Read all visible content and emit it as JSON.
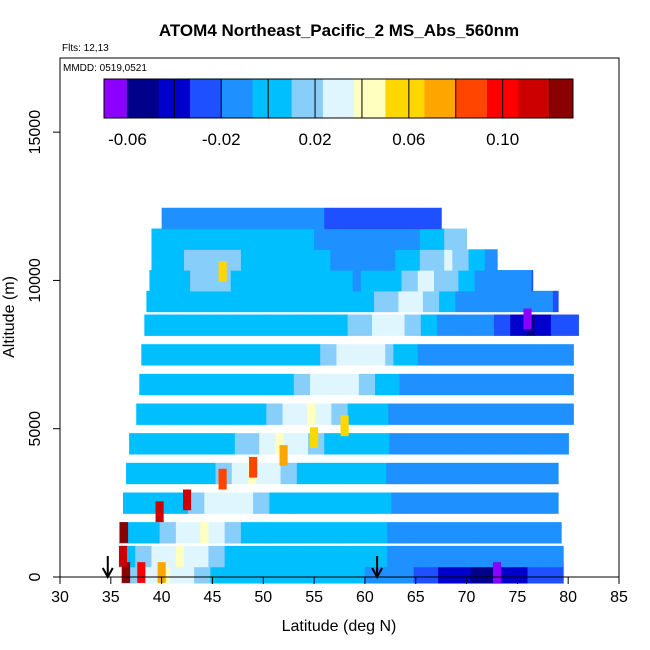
{
  "chart_data": {
    "type": "heatmap",
    "title": "ATOM4 Northeast_Pacific_2 MS_Abs_560nm",
    "flights_label": "Flts: 12,13",
    "mmdd_label": "MMDD: 0519,0521",
    "xlabel": "Latitude (deg N)",
    "ylabel": "Altitude (m)",
    "xlim": [
      30,
      85
    ],
    "ylim": [
      0,
      17500
    ],
    "x_ticks": [
      30,
      35,
      40,
      45,
      50,
      55,
      60,
      65,
      70,
      75,
      80,
      85
    ],
    "x_tick_labels": [
      "30",
      "35",
      "40",
      "45",
      "50",
      "55",
      "60",
      "65",
      "70",
      "75",
      "80",
      "85"
    ],
    "y_ticks": [
      0,
      5000,
      10000,
      15000
    ],
    "y_tick_labels": [
      "0",
      "5000",
      "10000",
      "15000"
    ],
    "colorbar": {
      "range": [
        -0.07,
        0.13
      ],
      "ticks": [
        -0.06,
        -0.02,
        0.02,
        0.06,
        0.1
      ],
      "tick_labels": [
        "-0.06",
        "-0.02",
        "0.02",
        "0.06",
        "0.10"
      ],
      "colors": [
        "#8b00ff",
        "#00008b",
        "#0000cd",
        "#1e50ff",
        "#1e90ff",
        "#00bfff",
        "#87cefa",
        "#e0f6ff",
        "#ffffc0",
        "#ffd700",
        "#ffa500",
        "#ff4500",
        "#ff0000",
        "#cd0000",
        "#8b0000"
      ],
      "divisions": [
        -0.06,
        -0.04,
        -0.02,
        0.0,
        0.02,
        0.04,
        0.06,
        0.08,
        0.1,
        0.12
      ]
    },
    "markers": [
      {
        "label": "arrow",
        "lat": 34.7
      },
      {
        "label": "arrow",
        "lat": 61.2
      }
    ],
    "profile_extent": [
      {
        "alt": 150,
        "lat_min": 36.0,
        "lat_max": 79.5
      },
      {
        "alt": 700,
        "lat_min": 35.8,
        "lat_max": 79.5
      },
      {
        "alt": 1500,
        "lat_min": 35.8,
        "lat_max": 79.3
      },
      {
        "alt": 2500,
        "lat_min": 36.2,
        "lat_max": 79.0
      },
      {
        "alt": 3500,
        "lat_min": 36.5,
        "lat_max": 79.0
      },
      {
        "alt": 4500,
        "lat_min": 36.8,
        "lat_max": 80.0
      },
      {
        "alt": 5500,
        "lat_min": 37.5,
        "lat_max": 80.5
      },
      {
        "alt": 6500,
        "lat_min": 37.8,
        "lat_max": 80.5
      },
      {
        "alt": 7500,
        "lat_min": 38.0,
        "lat_max": 80.5
      },
      {
        "alt": 8500,
        "lat_min": 38.3,
        "lat_max": 81.0
      },
      {
        "alt": 9300,
        "lat_min": 38.5,
        "lat_max": 79.0
      },
      {
        "alt": 10000,
        "lat_min": 38.8,
        "lat_max": 76.5
      },
      {
        "alt": 10700,
        "lat_min": 39.0,
        "lat_max": 73.0
      },
      {
        "alt": 11400,
        "lat_min": 39.0,
        "lat_max": 70.0
      },
      {
        "alt": 12100,
        "lat_min": 40.0,
        "lat_max": 67.5
      }
    ],
    "highlights": [
      {
        "lat": 36.5,
        "alt": 150,
        "value": 0.12
      },
      {
        "lat": 38.0,
        "alt": 150,
        "value": 0.1
      },
      {
        "lat": 40.0,
        "alt": 150,
        "value": 0.07
      },
      {
        "lat": 36.2,
        "alt": 700,
        "value": 0.11
      },
      {
        "lat": 36.3,
        "alt": 1500,
        "value": 0.12
      },
      {
        "lat": 39.8,
        "alt": 2200,
        "value": 0.11
      },
      {
        "lat": 42.5,
        "alt": 2600,
        "value": 0.11
      },
      {
        "lat": 46.0,
        "alt": 3300,
        "value": 0.09
      },
      {
        "lat": 49.0,
        "alt": 3700,
        "value": 0.08
      },
      {
        "lat": 52.0,
        "alt": 4100,
        "value": 0.07
      },
      {
        "lat": 55.0,
        "alt": 4700,
        "value": 0.06
      },
      {
        "lat": 58.0,
        "alt": 5100,
        "value": 0.05
      },
      {
        "lat": 46.0,
        "alt": 10300,
        "value": 0.05
      },
      {
        "lat": 73.0,
        "alt": 150,
        "value": -0.06
      },
      {
        "lat": 76.0,
        "alt": 8700,
        "value": -0.06
      }
    ]
  }
}
